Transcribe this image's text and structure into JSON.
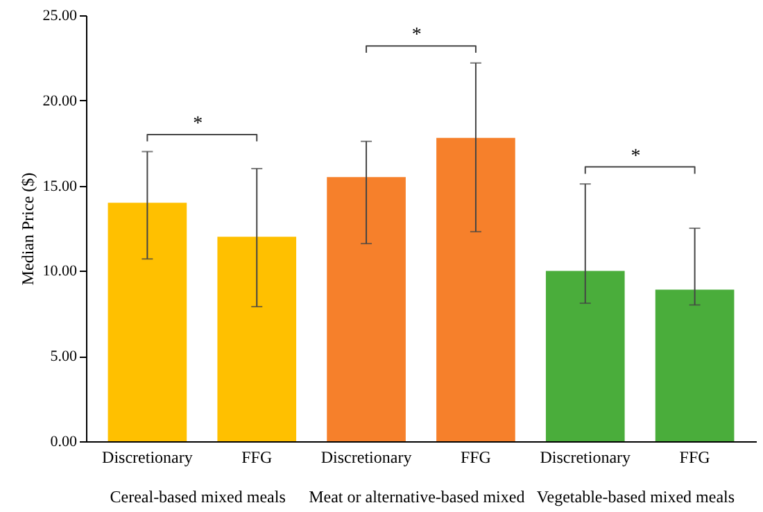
{
  "chart_data": {
    "type": "bar",
    "ylabel": "Median Price ($)",
    "categories": [
      "Discretionary",
      "FFG",
      "Discretionary",
      "FFG",
      "Discretionary",
      "FFG"
    ],
    "values": [
      14.0,
      12.0,
      15.5,
      17.8,
      10.0,
      8.9
    ],
    "colors": [
      "#ffc000",
      "#ffc000",
      "#f6802b",
      "#f6802b",
      "#4aad3b",
      "#4aad3b"
    ],
    "errors": [
      [
        10.7,
        17.0
      ],
      [
        7.9,
        16.0
      ],
      [
        11.6,
        17.6
      ],
      [
        12.3,
        22.2
      ],
      [
        8.1,
        15.1
      ],
      [
        8.0,
        12.5
      ]
    ],
    "ylim": [
      0,
      25
    ],
    "yticks": [
      {
        "value": 0,
        "label": "0.00"
      },
      {
        "value": 5,
        "label": "5.00"
      },
      {
        "value": 10,
        "label": "10.00"
      },
      {
        "value": 15,
        "label": "15.00"
      },
      {
        "value": 20,
        "label": "20.00"
      },
      {
        "value": 25,
        "label": "25.00"
      }
    ],
    "annotations": [
      "Cereal-based mixed meals",
      "Meat or alternative-based mixed",
      "Vegetable-based mixed meals",
      "*",
      "*",
      "*"
    ]
  }
}
